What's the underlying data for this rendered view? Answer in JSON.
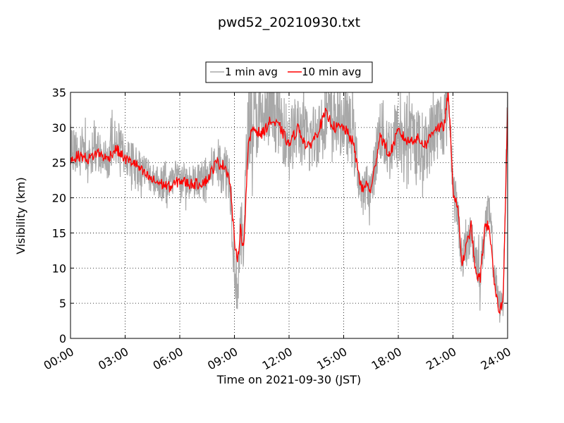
{
  "chart_data": {
    "type": "line",
    "title": "pwd52_20210930.txt",
    "xlabel": "Time on 2021-09-30 (JST)",
    "ylabel": "Visibility (km)",
    "xlim": [
      "00:00",
      "24:00"
    ],
    "ylim": [
      0,
      35
    ],
    "x_ticks": [
      "00:00",
      "03:00",
      "06:00",
      "09:00",
      "12:00",
      "15:00",
      "18:00",
      "21:00",
      "24:00"
    ],
    "y_ticks": [
      "0",
      "5",
      "10",
      "15",
      "20",
      "25",
      "30",
      "35"
    ],
    "grid": true,
    "legend_position": "top-center",
    "series": [
      {
        "name": "1 min avg",
        "color": "#a8a8a8",
        "x": [
          "00:00",
          "00:30",
          "01:00",
          "01:30",
          "02:00",
          "02:30",
          "03:00",
          "03:30",
          "04:00",
          "04:30",
          "05:00",
          "05:30",
          "06:00",
          "06:30",
          "07:00",
          "07:30",
          "08:00",
          "08:30",
          "08:45",
          "09:00",
          "09:10",
          "09:20",
          "09:30",
          "09:45",
          "10:00",
          "10:30",
          "11:00",
          "11:30",
          "12:00",
          "12:30",
          "13:00",
          "13:30",
          "14:00",
          "14:30",
          "15:00",
          "15:30",
          "16:00",
          "16:15",
          "16:30",
          "17:00",
          "17:30",
          "18:00",
          "18:30",
          "19:00",
          "19:30",
          "20:00",
          "20:30",
          "20:45",
          "21:00",
          "21:15",
          "21:30",
          "22:00",
          "22:15",
          "22:30",
          "22:45",
          "23:00",
          "23:15",
          "23:30",
          "23:45",
          "24:00"
        ],
        "values": [
          27,
          26,
          26,
          27,
          25,
          28,
          26,
          25,
          24,
          23,
          22,
          22,
          23,
          22,
          22,
          23,
          25,
          24,
          23,
          11,
          7,
          14,
          15,
          30,
          31,
          31,
          32,
          31,
          28,
          30,
          28,
          29,
          32,
          31,
          31,
          29,
          20,
          22,
          21,
          30,
          27,
          29,
          29,
          28,
          27,
          30,
          31,
          35,
          22,
          18,
          11,
          15,
          12,
          9,
          16,
          18,
          10,
          5,
          5,
          35
        ],
        "spread": [
          3.5,
          3,
          3,
          3,
          3,
          3.5,
          3,
          3,
          2.5,
          2.5,
          2.5,
          2.5,
          2.5,
          2.5,
          3,
          3,
          3.5,
          4,
          4,
          5,
          4,
          5,
          5,
          6,
          6,
          5,
          5,
          5,
          5,
          5,
          5,
          5,
          5,
          5,
          5,
          5,
          3,
          3,
          3,
          5,
          5,
          5,
          5,
          5,
          5,
          5,
          5,
          3,
          3,
          3,
          3,
          3,
          3,
          3,
          3,
          3,
          3,
          2,
          2,
          2
        ]
      },
      {
        "name": "10 min avg",
        "color": "#ff0000",
        "x": [
          "00:00",
          "00:30",
          "01:00",
          "01:30",
          "02:00",
          "02:30",
          "03:00",
          "03:30",
          "04:00",
          "04:30",
          "05:00",
          "05:30",
          "06:00",
          "06:30",
          "07:00",
          "07:30",
          "08:00",
          "08:30",
          "08:45",
          "09:00",
          "09:10",
          "09:20",
          "09:30",
          "09:45",
          "10:00",
          "10:30",
          "11:00",
          "11:30",
          "12:00",
          "12:30",
          "13:00",
          "13:30",
          "14:00",
          "14:30",
          "15:00",
          "15:30",
          "16:00",
          "16:15",
          "16:30",
          "17:00",
          "17:30",
          "18:00",
          "18:30",
          "19:00",
          "19:30",
          "20:00",
          "20:30",
          "20:45",
          "21:00",
          "21:15",
          "21:30",
          "22:00",
          "22:15",
          "22:30",
          "22:45",
          "23:00",
          "23:15",
          "23:30",
          "23:45",
          "24:00"
        ],
        "values": [
          25.5,
          26,
          25.5,
          26.5,
          25.5,
          27,
          25.5,
          25,
          23.5,
          22.5,
          22,
          21.5,
          22.5,
          22,
          22,
          22.5,
          25,
          24.5,
          22.5,
          14,
          10.5,
          16,
          12.5,
          27,
          30,
          29,
          31,
          30,
          27.5,
          30,
          27,
          29,
          32,
          30,
          30,
          28,
          21,
          22,
          21,
          29,
          26,
          29.5,
          28,
          28.5,
          27.5,
          30,
          30,
          35,
          21,
          19,
          10.5,
          16,
          9,
          8.5,
          16,
          16,
          8,
          4,
          5,
          33
        ]
      }
    ]
  }
}
